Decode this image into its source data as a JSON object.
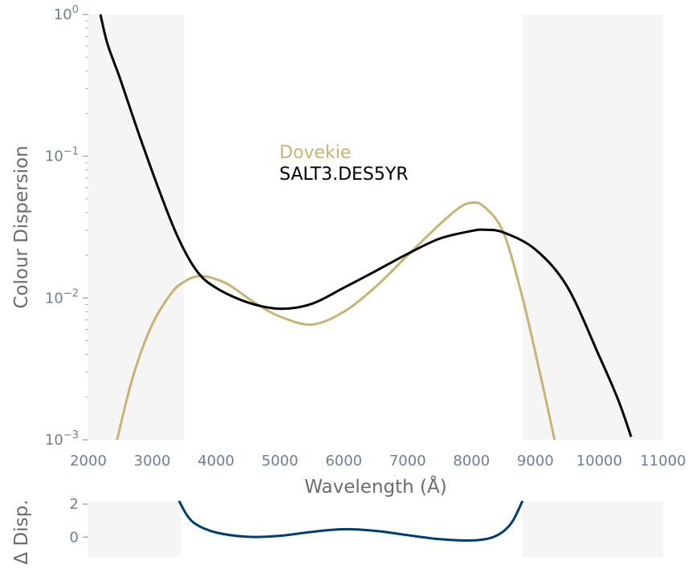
{
  "chart_data": [
    {
      "type": "line",
      "xlabel": "Wavelength (Å)",
      "ylabel": "Colour Dispersion",
      "xlim": [
        2000,
        11000
      ],
      "ylim": [
        0.001,
        1
      ],
      "yscale": "log",
      "x_ticks": [
        "2000",
        "3000",
        "4000",
        "5000",
        "6000",
        "7000",
        "8000",
        "9000",
        "10000",
        "11000"
      ],
      "y_ticks": [
        {
          "base": "10",
          "exp": "−3",
          "value": 0.001
        },
        {
          "base": "10",
          "exp": "−2",
          "value": 0.01
        },
        {
          "base": "10",
          "exp": "−1",
          "value": 0.1
        },
        {
          "base": "10",
          "exp": "0",
          "value": 1
        }
      ],
      "shaded_regions": [
        [
          2000,
          3500
        ],
        [
          8800,
          11000
        ]
      ],
      "grid": false,
      "legend_placement": "center",
      "series": [
        {
          "name": "Dovekie",
          "color": "#c8b472",
          "x": [
            2450,
            2700,
            3000,
            3300,
            3500,
            3700,
            3900,
            4200,
            4600,
            5000,
            5500,
            6000,
            6500,
            7000,
            7500,
            7800,
            8000,
            8200,
            8500,
            8800,
            9100,
            9300
          ],
          "y": [
            0.001,
            0.0028,
            0.0065,
            0.0108,
            0.013,
            0.0142,
            0.014,
            0.0124,
            0.0093,
            0.0074,
            0.0065,
            0.008,
            0.012,
            0.02,
            0.033,
            0.043,
            0.047,
            0.044,
            0.029,
            0.01,
            0.0026,
            0.001
          ]
        },
        {
          "name": "SALT3.DES5YR",
          "color": "#000000",
          "x": [
            2190,
            2300,
            2500,
            2800,
            3100,
            3400,
            3700,
            4000,
            4500,
            5000,
            5500,
            6000,
            6500,
            7000,
            7500,
            8000,
            8200,
            8500,
            9000,
            9500,
            10000,
            10300,
            10500
          ],
          "y": [
            1.0,
            0.62,
            0.35,
            0.14,
            0.059,
            0.027,
            0.0155,
            0.0118,
            0.0093,
            0.0084,
            0.0091,
            0.0118,
            0.0155,
            0.0205,
            0.0262,
            0.0297,
            0.0303,
            0.029,
            0.022,
            0.012,
            0.0039,
            0.0019,
            0.00105
          ]
        }
      ]
    },
    {
      "type": "line",
      "xlabel": "",
      "ylabel": "Δ Disp.",
      "xlim": [
        2000,
        11000
      ],
      "ylim": [
        -1.2,
        2.2
      ],
      "y_ticks": [
        "0",
        "2"
      ],
      "shaded_regions": [
        [
          2000,
          3450
        ],
        [
          8800,
          11000
        ]
      ],
      "series": [
        {
          "color": "#003d73",
          "x": [
            3420,
            3550,
            3700,
            4000,
            4500,
            5000,
            5500,
            6000,
            6500,
            7000,
            7500,
            8000,
            8300,
            8500,
            8650,
            8800
          ],
          "y": [
            2.2,
            1.3,
            0.75,
            0.28,
            0.02,
            0.08,
            0.32,
            0.48,
            0.38,
            0.12,
            -0.12,
            -0.2,
            -0.05,
            0.35,
            1.0,
            2.2
          ]
        }
      ]
    }
  ]
}
